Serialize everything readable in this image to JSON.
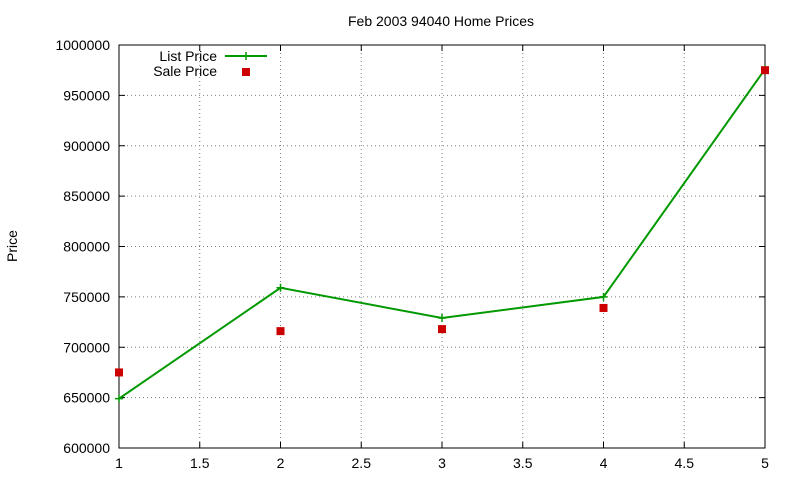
{
  "chart_data": {
    "type": "line",
    "title": "Feb 2003 94040 Home Prices",
    "xlabel": "",
    "ylabel": "Price",
    "xlim": [
      1,
      5
    ],
    "ylim": [
      600000,
      1000000
    ],
    "x_ticks": [
      "1",
      "1.5",
      "2",
      "2.5",
      "3",
      "3.5",
      "4",
      "4.5",
      "5"
    ],
    "y_ticks": [
      "600000",
      "650000",
      "700000",
      "750000",
      "800000",
      "850000",
      "900000",
      "950000",
      "1000000"
    ],
    "grid": true,
    "legend_position": "top-left",
    "series": [
      {
        "name": "List Price",
        "style": "line+cross",
        "color": "#009900",
        "points": [
          [
            1,
            649000
          ],
          [
            2,
            759000
          ],
          [
            3,
            729000
          ],
          [
            4,
            750000
          ],
          [
            5,
            976000
          ]
        ]
      },
      {
        "name": "Sale Price",
        "style": "square-markers",
        "color": "#cc0000",
        "points": [
          [
            1,
            675000
          ],
          [
            2,
            716000
          ],
          [
            3,
            718000
          ],
          [
            4,
            739000
          ],
          [
            5,
            975000
          ]
        ]
      }
    ]
  }
}
